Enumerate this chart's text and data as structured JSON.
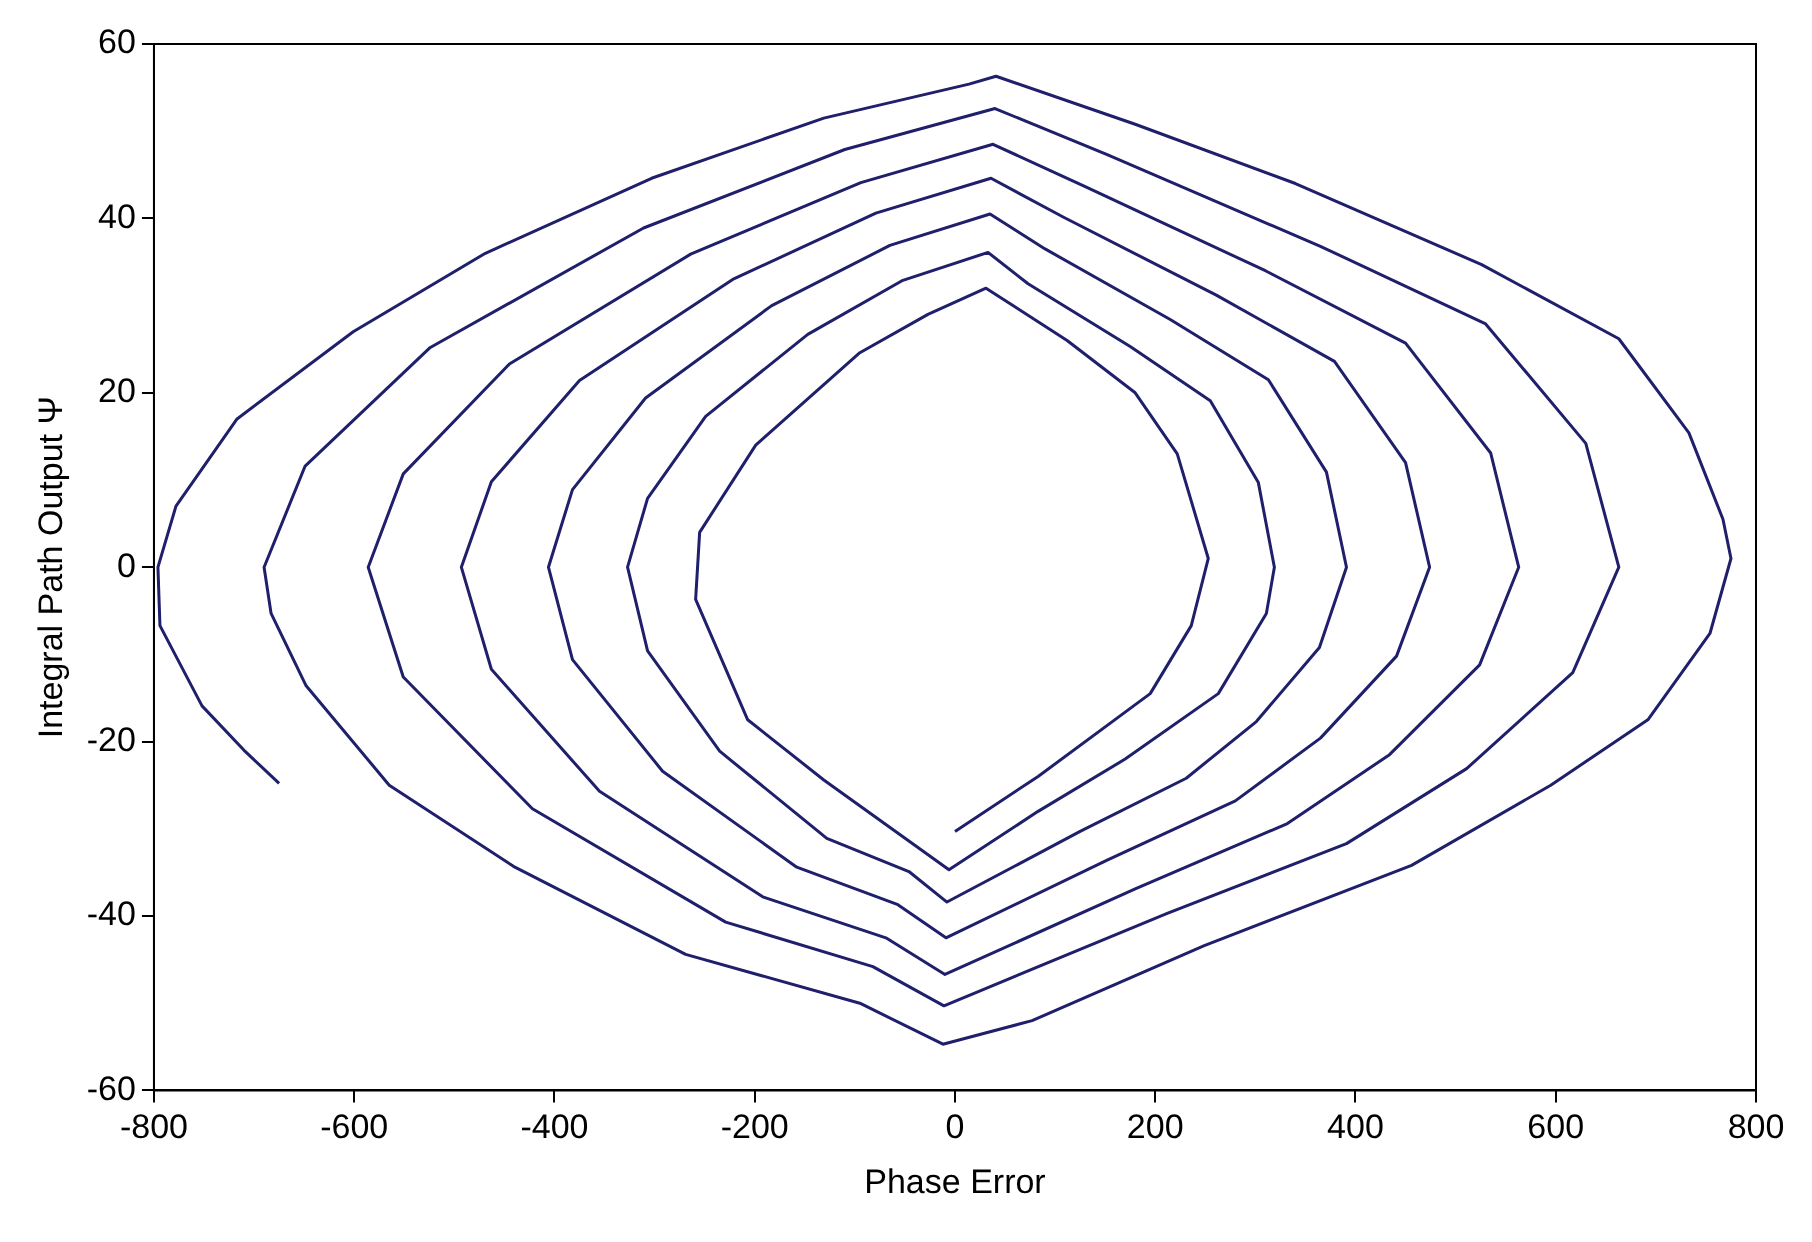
{
  "chart_data": {
    "type": "line",
    "xlabel": "Phase Error",
    "ylabel": "Integral Path Output Ψ",
    "xlim": [
      -800,
      800
    ],
    "ylim": [
      -60,
      60
    ],
    "xticks": [
      -800,
      -600,
      -400,
      -200,
      0,
      200,
      400,
      600,
      800
    ],
    "yticks": [
      -60,
      -40,
      -20,
      0,
      20,
      40,
      60
    ],
    "grid": false,
    "legend": false,
    "series": [
      {
        "color": "#1f1f6b",
        "x": [
          0,
          83,
          195,
          236,
          253,
          222,
          180,
          112,
          31,
          -27,
          -95,
          -199,
          -255,
          -259,
          -207,
          -131,
          -6,
          83,
          170,
          263,
          311,
          319,
          303,
          255,
          175,
          73,
          33,
          -52,
          -147,
          -249,
          -307,
          -327,
          -307,
          -235,
          -128,
          -46,
          -8,
          125,
          231,
          301,
          364,
          391,
          371,
          313,
          215,
          90,
          35,
          -65,
          -183,
          -309,
          -382,
          -406,
          -382,
          -292,
          -158,
          -57,
          -9,
          152,
          280,
          365,
          441,
          474,
          450,
          379,
          261,
          109,
          36,
          -79,
          -222,
          -375,
          -463,
          -493,
          -463,
          -355,
          -192,
          -69,
          -10,
          180,
          332,
          434,
          524,
          563,
          535,
          450,
          310,
          129,
          38,
          -94,
          -264,
          -445,
          -551,
          -586,
          -551,
          -422,
          -229,
          -82,
          -11,
          212,
          391,
          511,
          617,
          663,
          630,
          530,
          365,
          152,
          40,
          -110,
          -311,
          -524,
          -649,
          -690,
          -683,
          -648,
          -565,
          -441,
          -269,
          -95,
          -12,
          77,
          249,
          456,
          595,
          692,
          754,
          775,
          767,
          733,
          663,
          526,
          340,
          180,
          41,
          14,
          -131,
          -303,
          -469,
          -601,
          -717,
          -778,
          -796,
          -794,
          -752,
          -710,
          -675
        ],
        "values": [
          -30.3,
          -24,
          -14.5,
          -6.7,
          1,
          13,
          20,
          26,
          32,
          29,
          24.6,
          14,
          4,
          -3.7,
          -17.5,
          -24.4,
          -34.7,
          -28,
          -22,
          -14.5,
          -5.3,
          0,
          9.7,
          19.1,
          25.3,
          32.5,
          36.1,
          32.9,
          26.7,
          17.3,
          7.9,
          0,
          -9.6,
          -21.1,
          -31.1,
          -34.9,
          -38.4,
          -30.3,
          -24.2,
          -17.7,
          -9.2,
          0,
          10.9,
          21.5,
          28.4,
          36.5,
          40.5,
          36.9,
          30,
          19.4,
          8.9,
          0,
          -10.6,
          -23.4,
          -34.4,
          -38.7,
          -42.5,
          -33.6,
          -26.8,
          -19.6,
          -10.2,
          0,
          12,
          23.6,
          31.2,
          40.1,
          44.6,
          40.6,
          33,
          21.4,
          9.8,
          0,
          -11.7,
          -25.7,
          -37.8,
          -42.5,
          -46.7,
          -36.9,
          -29.4,
          -21.5,
          -11.2,
          0,
          13.1,
          25.7,
          34,
          43.7,
          48.5,
          44.1,
          35.9,
          23.3,
          10.7,
          0,
          -12.6,
          -27.7,
          -40.7,
          -45.8,
          -50.3,
          -39.7,
          -31.7,
          -23.1,
          -12.1,
          0,
          14.2,
          27.9,
          36.8,
          47.3,
          52.6,
          47.9,
          38.9,
          25.2,
          11.6,
          0,
          -5.3,
          -13.6,
          -25,
          -34.3,
          -44.4,
          -50,
          -54.7,
          -52,
          -43.4,
          -34.2,
          -25,
          -17.5,
          -7.6,
          1,
          5.5,
          15.4,
          26.2,
          34.7,
          44,
          50.8,
          56.3,
          55.4,
          51.5,
          44.6,
          36,
          27,
          17,
          7,
          0,
          -6.7,
          -15.9,
          -21,
          -24.8
        ]
      }
    ]
  }
}
